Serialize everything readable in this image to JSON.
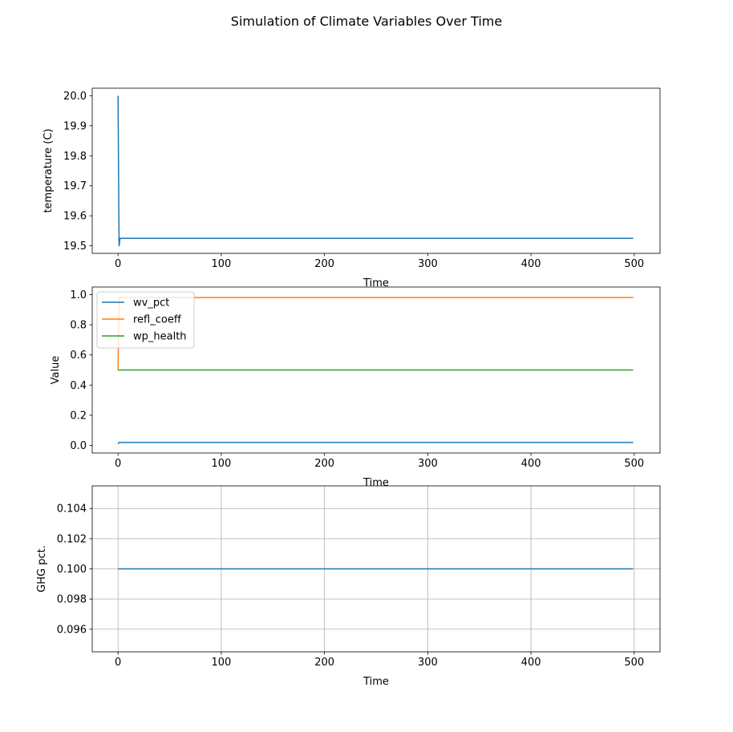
{
  "figure": {
    "title": "Simulation of Climate Variables Over Time"
  },
  "colors": {
    "blue": "#1f77b4",
    "orange": "#ff7f0e",
    "green": "#2ca02c",
    "grid": "#b0b0b0"
  },
  "chart_data": [
    {
      "type": "line",
      "xlabel": "Time",
      "ylabel": "temperature (C)",
      "xlim": [
        -25,
        525
      ],
      "ylim": [
        19.475,
        20.025
      ],
      "xticks": [
        0,
        100,
        200,
        300,
        400,
        500
      ],
      "yticks": [
        19.5,
        19.6,
        19.7,
        19.8,
        19.9,
        20.0
      ],
      "ytick_labels": [
        "19.5",
        "19.6",
        "19.7",
        "19.8",
        "19.9",
        "20.0"
      ],
      "grid": false,
      "legend": null,
      "series": [
        {
          "color": "#1f77b4",
          "x": [
            0,
            1,
            2,
            3,
            499
          ],
          "y": [
            20.0,
            19.5,
            19.525,
            19.525,
            19.525
          ]
        }
      ]
    },
    {
      "type": "line",
      "xlabel": "Time",
      "ylabel": "Value",
      "xlim": [
        -25,
        525
      ],
      "ylim": [
        -0.05,
        1.05
      ],
      "xticks": [
        0,
        100,
        200,
        300,
        400,
        500
      ],
      "yticks": [
        0.0,
        0.2,
        0.4,
        0.6,
        0.8,
        1.0
      ],
      "ytick_labels": [
        "0.0",
        "0.2",
        "0.4",
        "0.6",
        "0.8",
        "1.0"
      ],
      "grid": false,
      "legend": "upper left",
      "series": [
        {
          "name": "wv_pct",
          "color": "#1f77b4",
          "x": [
            0,
            1,
            499
          ],
          "y": [
            0.01,
            0.02,
            0.02
          ]
        },
        {
          "name": "refl_coeff",
          "color": "#ff7f0e",
          "x": [
            0,
            1,
            499
          ],
          "y": [
            0.5,
            0.98,
            0.98
          ]
        },
        {
          "name": "wp_health",
          "color": "#2ca02c",
          "x": [
            0,
            1,
            499
          ],
          "y": [
            0.5,
            0.5,
            0.5
          ]
        }
      ]
    },
    {
      "type": "line",
      "xlabel": "Time",
      "ylabel": "GHG pct.",
      "xlim": [
        -25,
        525
      ],
      "ylim": [
        0.0945,
        0.1055
      ],
      "xticks": [
        0,
        100,
        200,
        300,
        400,
        500
      ],
      "yticks": [
        0.096,
        0.098,
        0.1,
        0.102,
        0.104
      ],
      "ytick_labels": [
        "0.096",
        "0.098",
        "0.100",
        "0.102",
        "0.104"
      ],
      "grid": true,
      "legend": null,
      "series": [
        {
          "color": "#1f77b4",
          "x": [
            0,
            499
          ],
          "y": [
            0.1,
            0.1
          ]
        }
      ]
    }
  ]
}
